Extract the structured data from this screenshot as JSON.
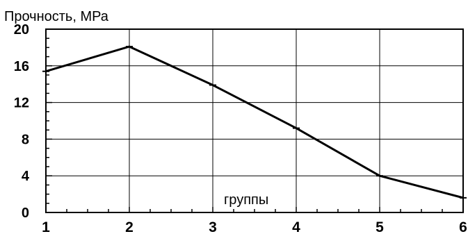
{
  "chart_data": {
    "type": "line",
    "title": "Прочность, МРа",
    "xlabel": "группы",
    "ylabel": "",
    "x": [
      1,
      2,
      3,
      4,
      5,
      6
    ],
    "x_tick_labels": [
      "1",
      "2",
      "3",
      "4",
      "5",
      "6"
    ],
    "y_tick_values": [
      0,
      4,
      8,
      12,
      16,
      20
    ],
    "y_tick_labels": [
      "0",
      "4",
      "8",
      "12",
      "16",
      "20"
    ],
    "xlim": [
      1,
      6
    ],
    "ylim": [
      0,
      20
    ],
    "grid": true,
    "series": [
      {
        "values": [
          15.4,
          18.1,
          13.9,
          9.2,
          4.0,
          1.6
        ],
        "color": "#000000"
      }
    ]
  }
}
